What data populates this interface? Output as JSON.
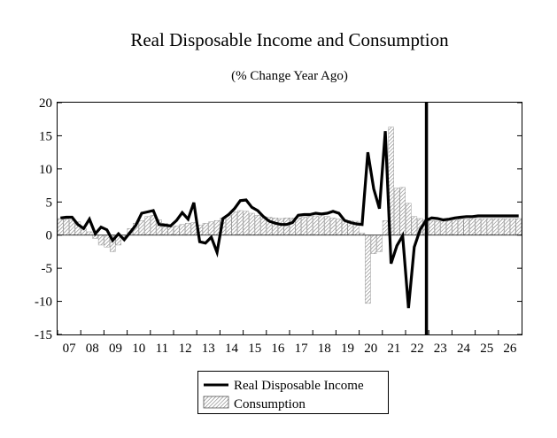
{
  "chart_data": {
    "type": "bar+line",
    "title": "Real Disposable Income and Consumption",
    "subtitle": "(% Change Year Ago)",
    "xlabel": "",
    "ylabel": "",
    "ylim": [
      -15,
      20
    ],
    "yticks": [
      "20",
      "15",
      "10",
      "5",
      "0",
      "-5",
      "-10",
      "-15"
    ],
    "xlim": [
      2007,
      2027
    ],
    "xticks": [
      "07",
      "08",
      "09",
      "10",
      "11",
      "12",
      "13",
      "14",
      "15",
      "16",
      "17",
      "18",
      "19",
      "20",
      "21",
      "22",
      "23",
      "24",
      "25",
      "26"
    ],
    "forecast_line_x": 2022.9,
    "grid": false,
    "legend_position": "bottom-center",
    "series": [
      {
        "name": "Real Disposable Income",
        "kind": "line",
        "color": "#000000",
        "x": [
          2007.0,
          2007.25,
          2007.5,
          2007.75,
          2008.0,
          2008.25,
          2008.5,
          2008.75,
          2009.0,
          2009.25,
          2009.5,
          2009.75,
          2010.0,
          2010.25,
          2010.5,
          2010.75,
          2011.0,
          2011.25,
          2011.5,
          2011.75,
          2012.0,
          2012.25,
          2012.5,
          2012.75,
          2013.0,
          2013.25,
          2013.5,
          2013.75,
          2014.0,
          2014.25,
          2014.5,
          2014.75,
          2015.0,
          2015.25,
          2015.5,
          2015.75,
          2016.0,
          2016.25,
          2016.5,
          2016.75,
          2017.0,
          2017.25,
          2017.5,
          2017.75,
          2018.0,
          2018.25,
          2018.5,
          2018.75,
          2019.0,
          2019.25,
          2019.5,
          2019.75,
          2020.0,
          2020.25,
          2020.5,
          2020.75,
          2021.0,
          2021.25,
          2021.5,
          2021.75,
          2022.0,
          2022.25,
          2022.5,
          2022.75,
          2023.0,
          2023.25,
          2023.5,
          2023.75,
          2024.0,
          2024.25,
          2024.5,
          2024.75,
          2025.0,
          2025.25,
          2025.5,
          2025.75,
          2026.0,
          2026.25,
          2026.5,
          2026.75
        ],
        "values": [
          2.6,
          2.7,
          2.7,
          1.6,
          1.0,
          2.4,
          0.2,
          1.2,
          0.8,
          -0.8,
          0.2,
          -0.7,
          0.4,
          1.5,
          3.3,
          3.5,
          3.7,
          1.6,
          1.5,
          1.4,
          2.2,
          3.4,
          2.4,
          4.9,
          -1.0,
          -1.2,
          -0.3,
          -2.6,
          2.5,
          3.1,
          4.0,
          5.2,
          5.3,
          4.2,
          3.7,
          2.8,
          2.1,
          1.8,
          1.6,
          1.6,
          1.9,
          3.0,
          3.1,
          3.1,
          3.3,
          3.2,
          3.3,
          3.6,
          3.3,
          2.2,
          1.9,
          1.7,
          1.6,
          12.5,
          7.0,
          4.0,
          15.7,
          -4.3,
          -1.6,
          -0.1,
          -11.0,
          -1.8,
          0.8,
          2.2,
          2.6,
          2.5,
          2.3,
          2.4,
          2.6,
          2.7,
          2.8,
          2.8,
          2.9,
          2.9,
          2.9,
          2.9,
          2.9,
          2.9,
          2.9,
          2.9
        ]
      },
      {
        "name": "Consumption",
        "kind": "bar",
        "fill": "hatched",
        "x": [
          2007.0,
          2007.25,
          2007.5,
          2007.75,
          2008.0,
          2008.25,
          2008.5,
          2008.75,
          2009.0,
          2009.25,
          2009.5,
          2009.75,
          2010.0,
          2010.25,
          2010.5,
          2010.75,
          2011.0,
          2011.25,
          2011.5,
          2011.75,
          2012.0,
          2012.25,
          2012.5,
          2012.75,
          2013.0,
          2013.25,
          2013.5,
          2013.75,
          2014.0,
          2014.25,
          2014.5,
          2014.75,
          2015.0,
          2015.25,
          2015.5,
          2015.75,
          2016.0,
          2016.25,
          2016.5,
          2016.75,
          2017.0,
          2017.25,
          2017.5,
          2017.75,
          2018.0,
          2018.25,
          2018.5,
          2018.75,
          2019.0,
          2019.25,
          2019.5,
          2019.75,
          2020.0,
          2020.25,
          2020.5,
          2020.75,
          2021.0,
          2021.25,
          2021.5,
          2021.75,
          2022.0,
          2022.25,
          2022.5,
          2022.75,
          2023.0,
          2023.25,
          2023.5,
          2023.75,
          2024.0,
          2024.25,
          2024.5,
          2024.75,
          2025.0,
          2025.25,
          2025.5,
          2025.75,
          2026.0,
          2026.25,
          2026.5,
          2026.75
        ],
        "values": [
          2.5,
          2.4,
          2.3,
          2.0,
          1.0,
          0.5,
          -0.5,
          -1.5,
          -1.8,
          -2.5,
          -1.5,
          -0.4,
          1.0,
          1.8,
          2.2,
          2.8,
          3.0,
          2.3,
          1.8,
          1.2,
          1.4,
          1.6,
          1.8,
          1.9,
          1.5,
          1.8,
          2.0,
          2.2,
          2.6,
          3.0,
          3.5,
          3.7,
          3.6,
          3.3,
          3.0,
          2.8,
          2.7,
          2.6,
          2.5,
          2.6,
          2.6,
          2.6,
          2.7,
          2.8,
          2.9,
          3.0,
          2.8,
          2.6,
          2.4,
          2.3,
          2.2,
          2.1,
          0.3,
          -10.3,
          -2.8,
          -2.5,
          2.2,
          16.3,
          7.1,
          7.2,
          4.8,
          2.8,
          2.5,
          2.3,
          2.2,
          2.1,
          2.1,
          2.2,
          2.3,
          2.4,
          2.4,
          2.5,
          2.5,
          2.5,
          2.5,
          2.5,
          2.5,
          2.5,
          2.5,
          2.5
        ]
      }
    ]
  }
}
